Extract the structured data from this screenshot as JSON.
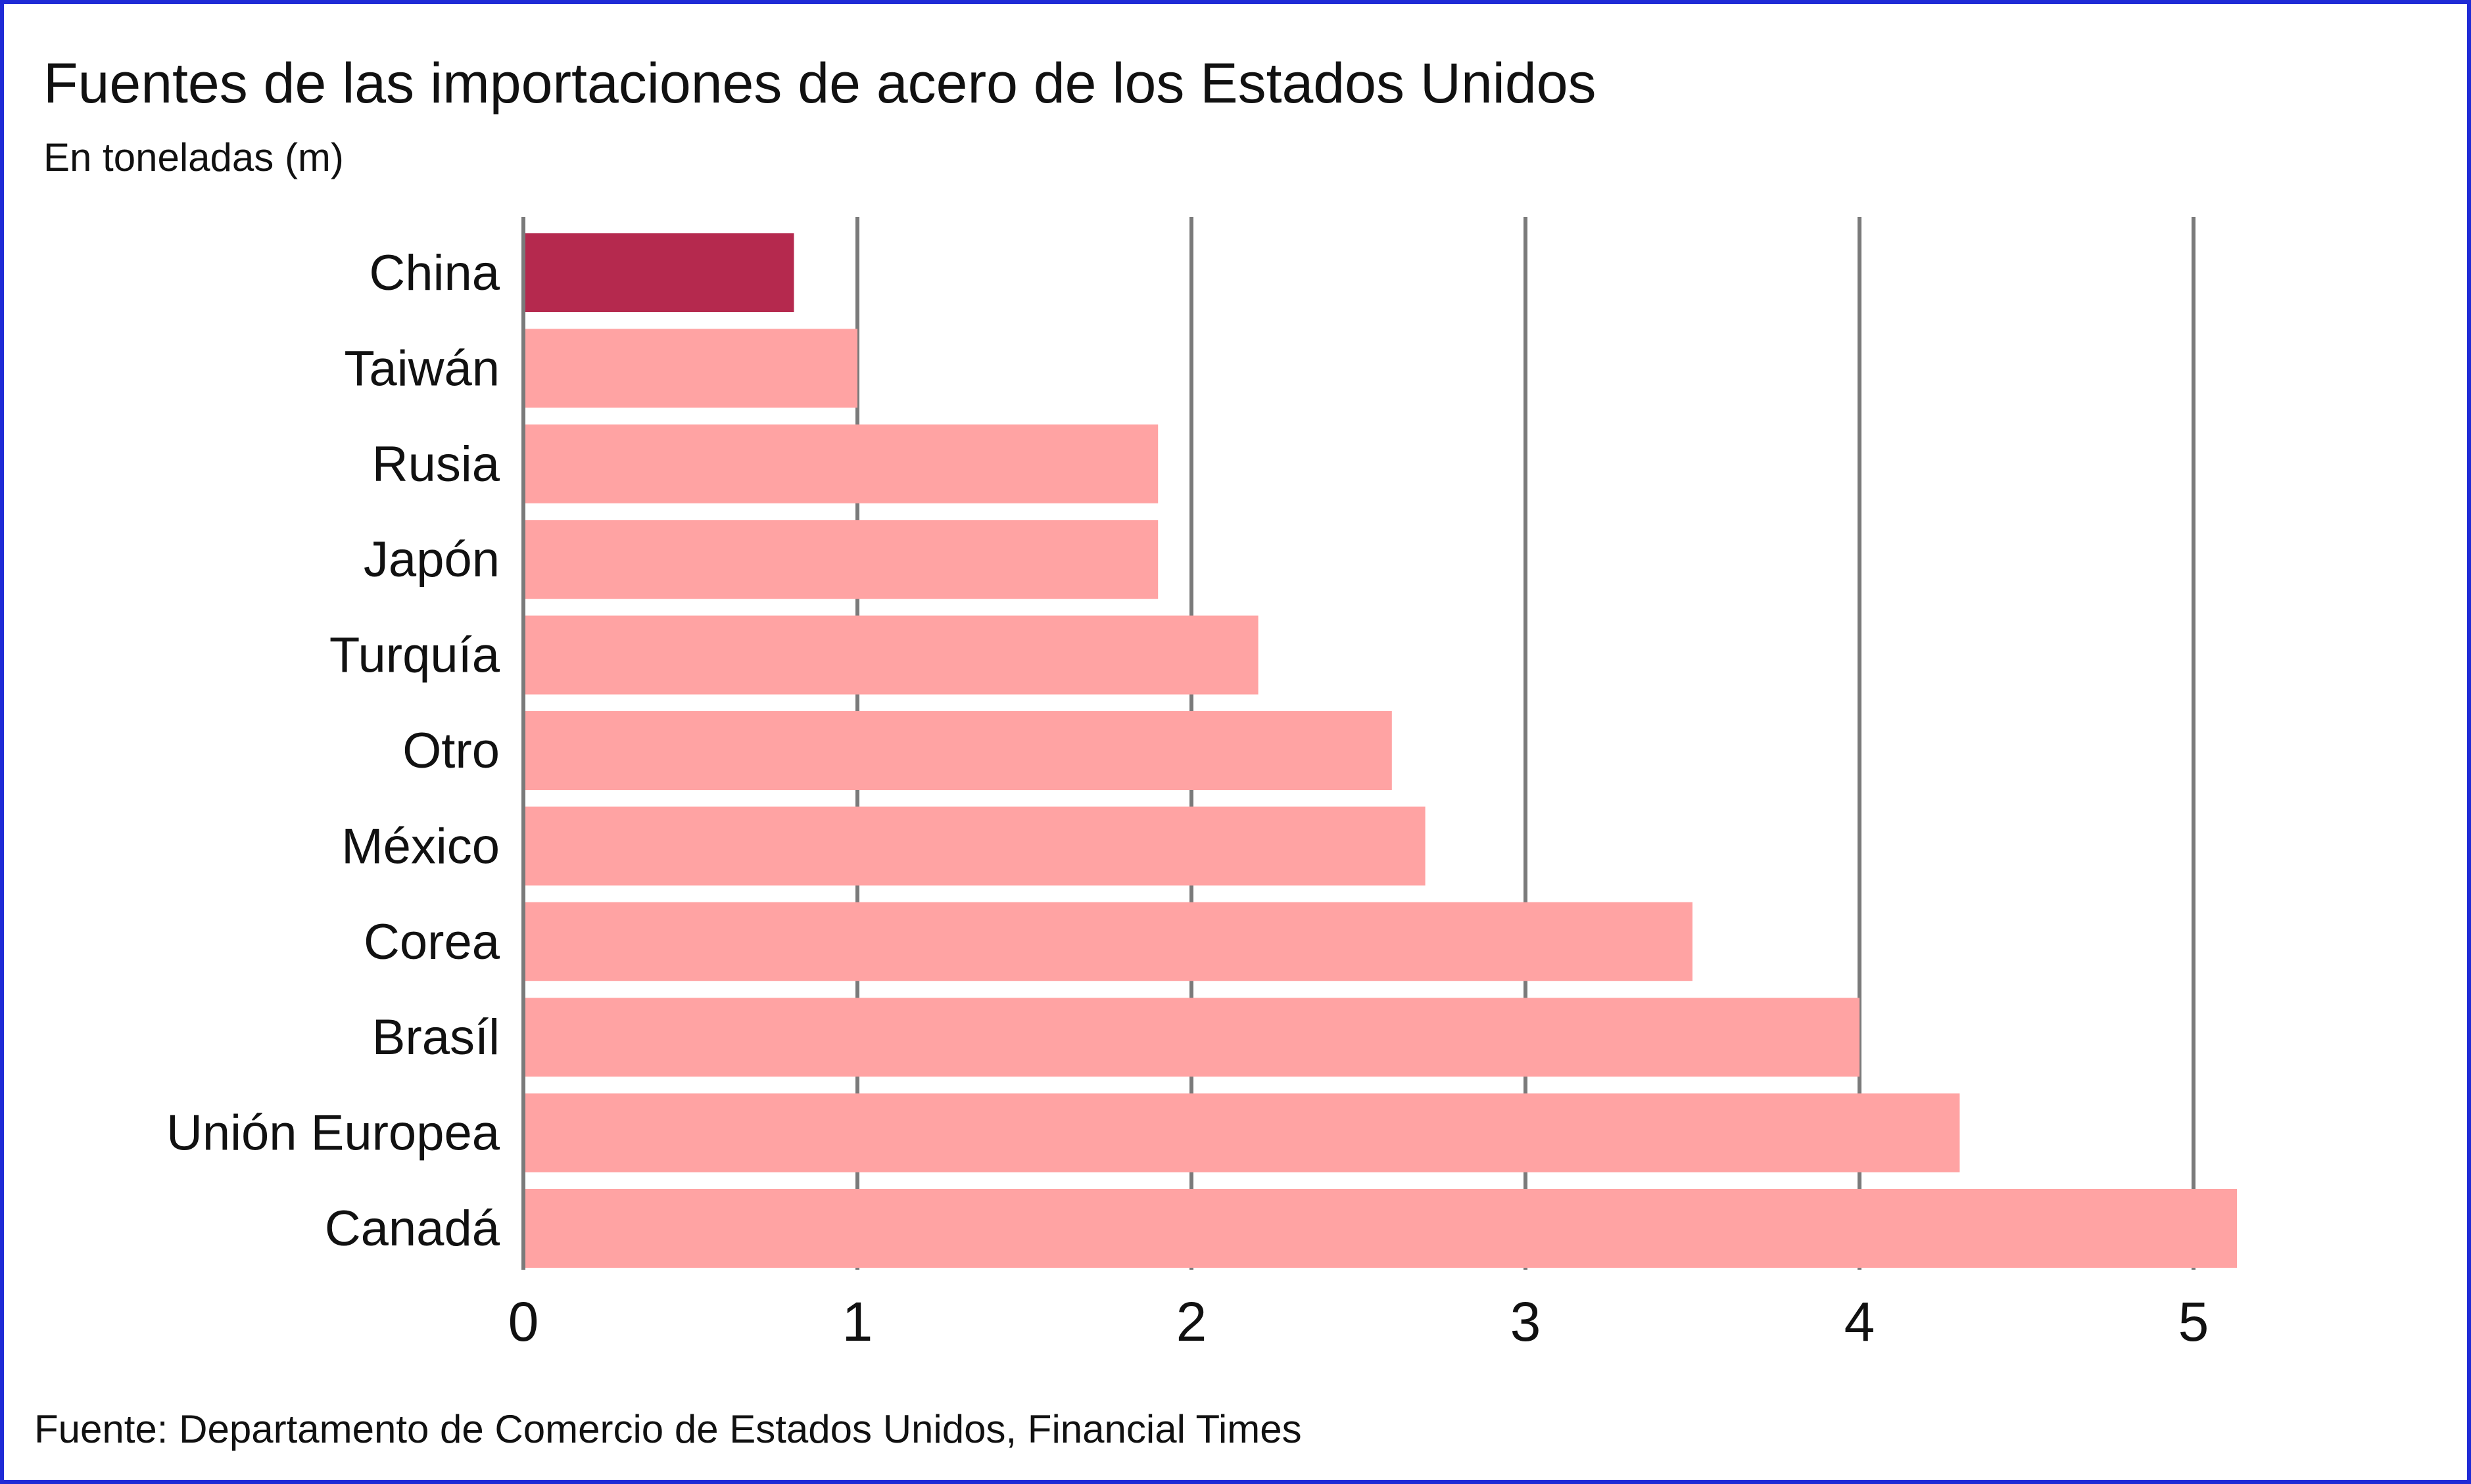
{
  "title": "Fuentes de las importaciones de acero de los Estados Unidos",
  "subtitle": "En toneladas (m)",
  "source": "Fuente: Departamento de Comercio de Estados Unidos, Financial Times",
  "colors": {
    "highlight": "#b5294e",
    "bar": "#ffa3a3",
    "grid": "#7a7a7a",
    "frame": "#1f2bd6"
  },
  "chart_data": {
    "type": "bar",
    "orientation": "horizontal",
    "categories": [
      "China",
      "Taiwán",
      "Rusia",
      "Japón",
      "Turquía",
      "Otro",
      "México",
      "Corea",
      "Brasíl",
      "Unión Europea",
      "Canadá"
    ],
    "values": [
      0.81,
      1.0,
      1.9,
      1.9,
      2.2,
      2.6,
      2.7,
      3.5,
      4.0,
      4.3,
      5.13
    ],
    "highlight": "China",
    "xlim": [
      0,
      5
    ],
    "xticks": [
      "0",
      "1",
      "2",
      "3",
      "4",
      "5"
    ],
    "grid": "vertical",
    "title": "Fuentes de las importaciones de acero de los Estados Unidos",
    "subtitle": "En toneladas (m)"
  }
}
